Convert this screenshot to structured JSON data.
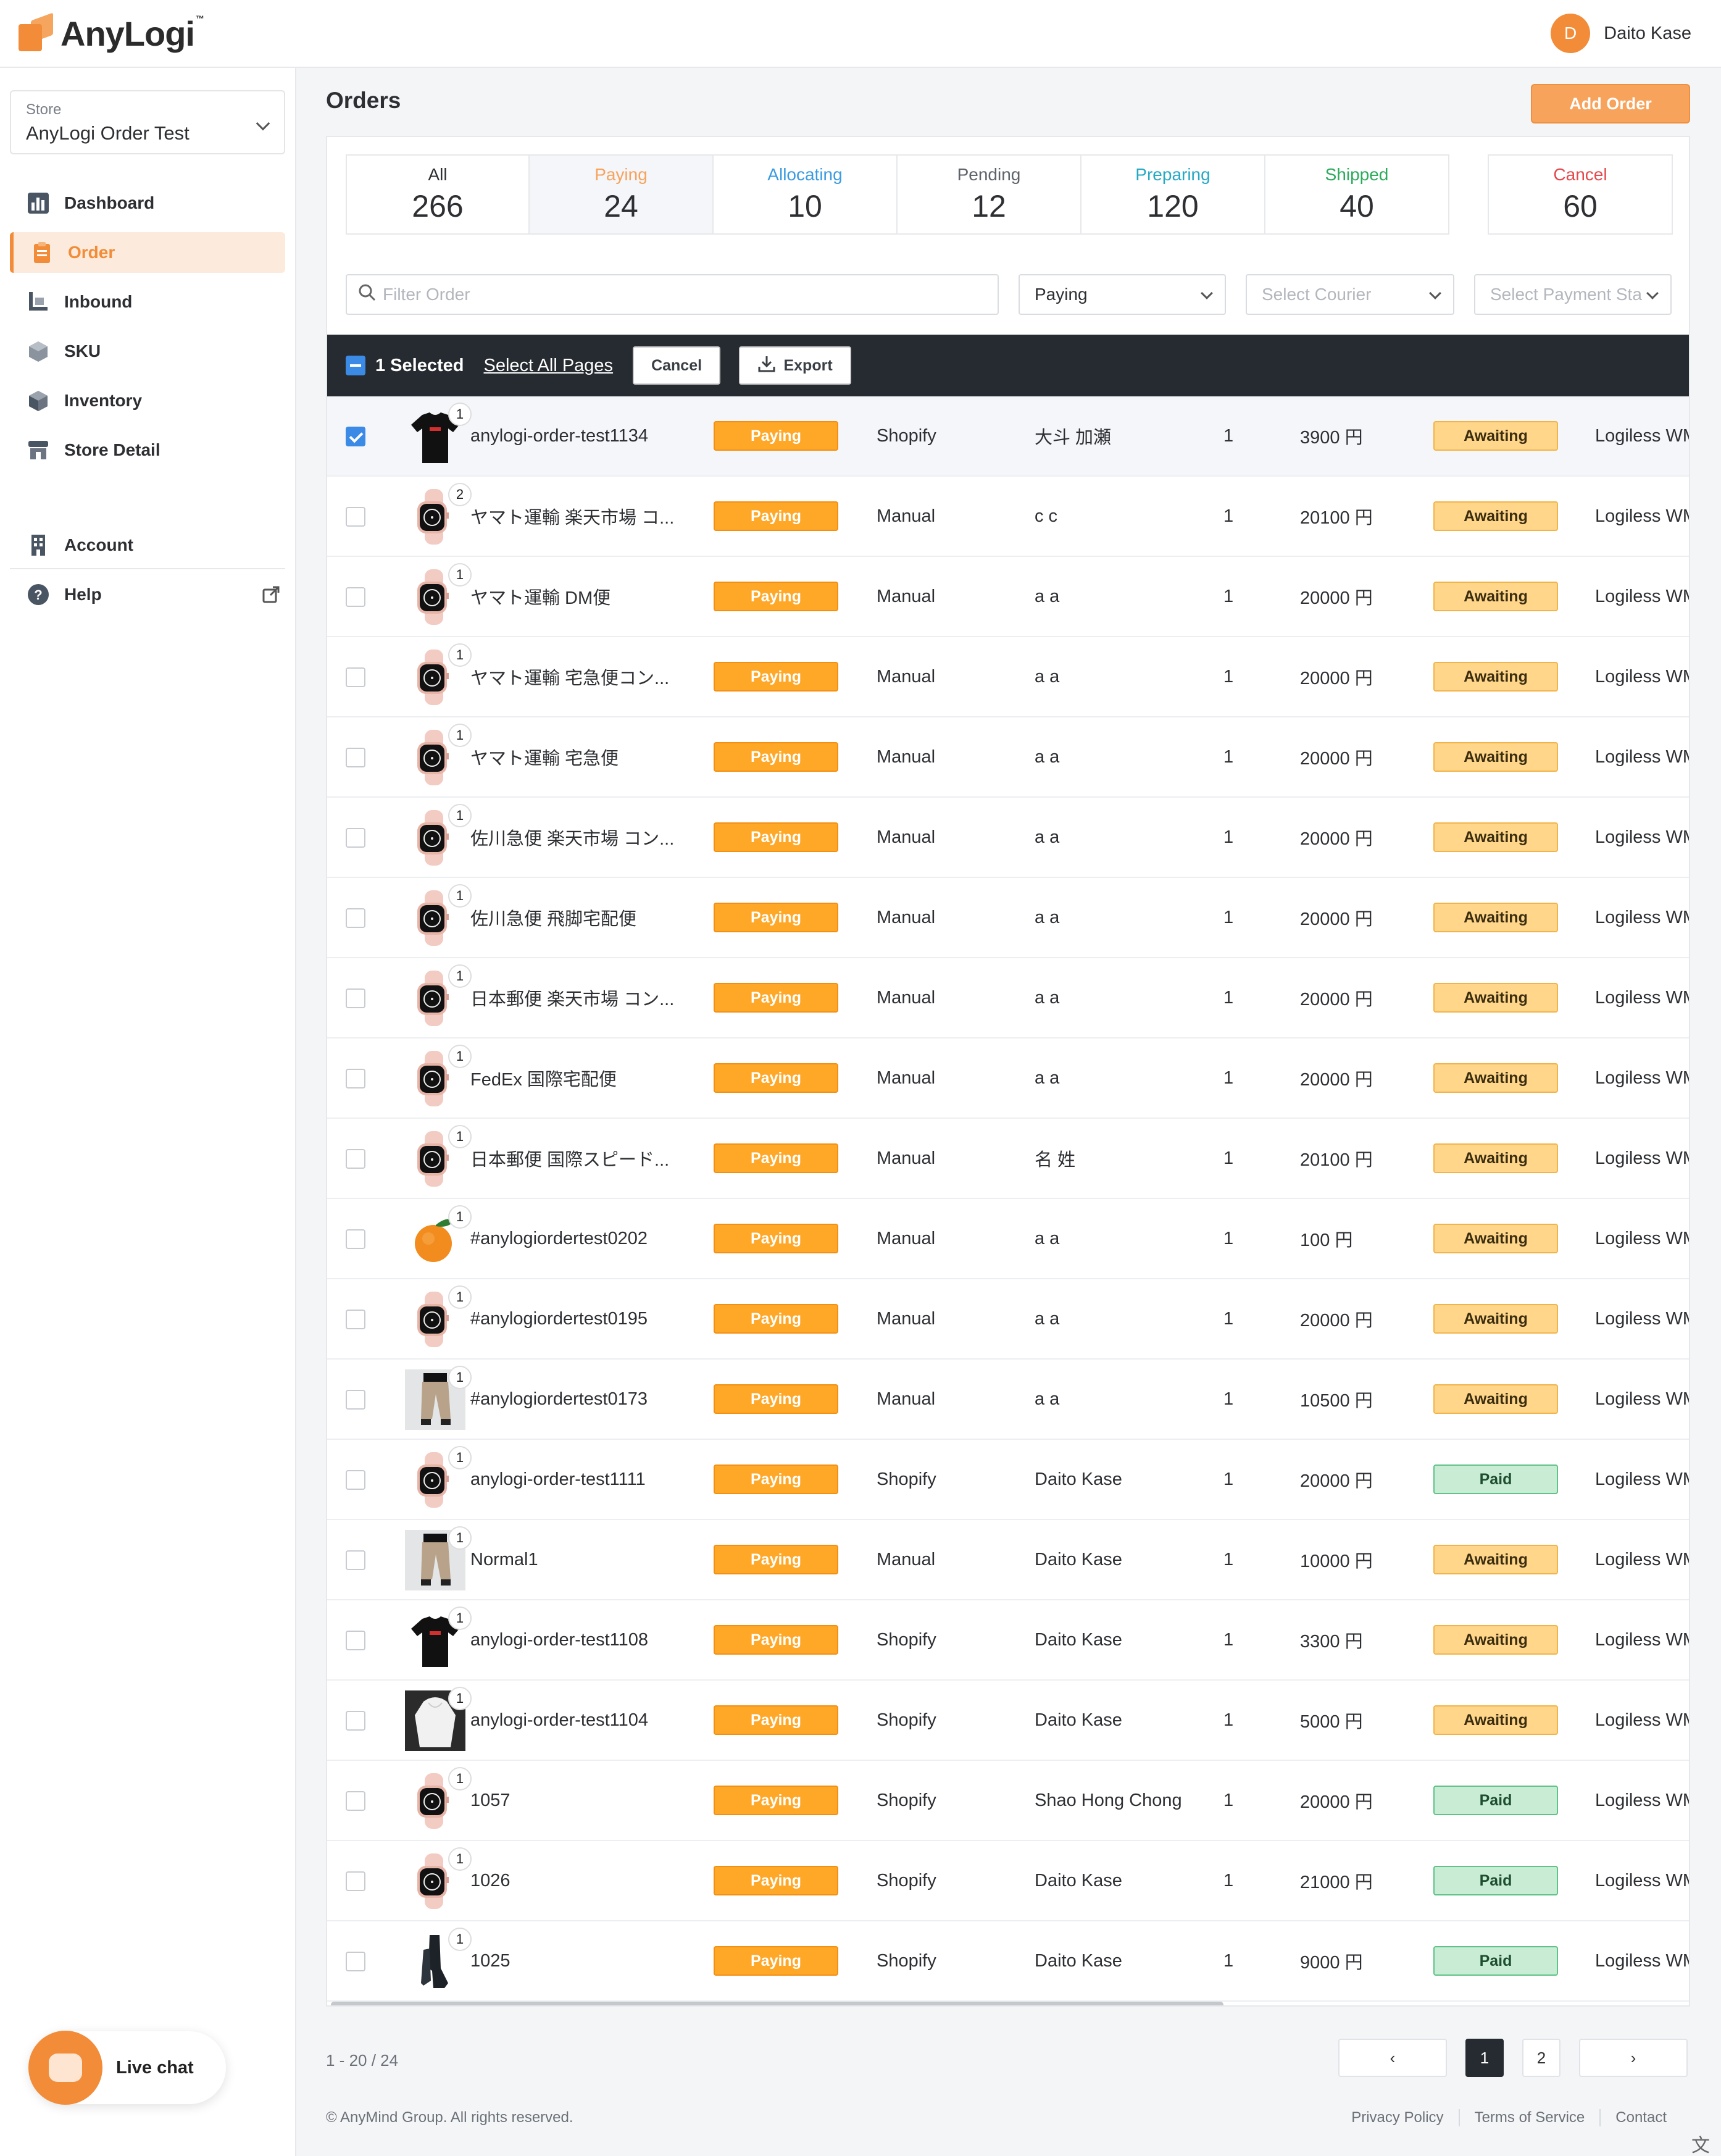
{
  "header": {
    "logo_text": "AnyLogi",
    "logo_tm": "™",
    "user_initial": "D",
    "user_name": "Daito Kase"
  },
  "sidebar": {
    "store_label": "Store",
    "store_value": "AnyLogi Order Test",
    "items": [
      {
        "label": "Dashboard",
        "icon": "chart-icon"
      },
      {
        "label": "Order",
        "icon": "clipboard-icon",
        "active": true
      },
      {
        "label": "Inbound",
        "icon": "inbound-icon"
      },
      {
        "label": "SKU",
        "icon": "box-icon"
      },
      {
        "label": "Inventory",
        "icon": "cube-icon"
      },
      {
        "label": "Store Detail",
        "icon": "store-icon"
      },
      {
        "label": "Account",
        "icon": "building-icon"
      },
      {
        "label": "Help",
        "icon": "help-icon"
      }
    ]
  },
  "main": {
    "title": "Orders",
    "add_button": "Add Order"
  },
  "tabs": [
    {
      "label": "All",
      "count": "266",
      "color": "#2d2f33"
    },
    {
      "label": "Paying",
      "count": "24",
      "color": "#f7a35c"
    },
    {
      "label": "Allocating",
      "count": "10",
      "color": "#3a9be0"
    },
    {
      "label": "Pending",
      "count": "12",
      "color": "#5f646b"
    },
    {
      "label": "Preparing",
      "count": "120",
      "color": "#26a9c4"
    },
    {
      "label": "Shipped",
      "count": "40",
      "color": "#2bab5b"
    },
    {
      "label": "Cancel",
      "count": "60",
      "color": "#e5484d"
    }
  ],
  "filters": {
    "search_placeholder": "Filter Order",
    "status_value": "Paying",
    "courier_placeholder": "Select Courier",
    "payment_placeholder": "Select Payment Sta"
  },
  "bulk": {
    "selected": "1 Selected",
    "select_all": "Select All Pages",
    "cancel": "Cancel",
    "export": "Export"
  },
  "rows": [
    {
      "checked": true,
      "img": "tshirt",
      "qty": "1",
      "id": "anylogi-order-test1134",
      "status": "Paying",
      "source": "Shopify",
      "customer": "大斗 加瀬",
      "count": "1",
      "amount": "3900 円",
      "payment": "Awaiting",
      "warehouse": "Logiless WM"
    },
    {
      "checked": false,
      "img": "watch",
      "qty": "2",
      "id": "ヤマト運輸 楽天市場 コ...",
      "status": "Paying",
      "source": "Manual",
      "customer": "c c",
      "count": "1",
      "amount": "20100 円",
      "payment": "Awaiting",
      "warehouse": "Logiless WM"
    },
    {
      "checked": false,
      "img": "watch",
      "qty": "1",
      "id": "ヤマト運輸 DM便",
      "status": "Paying",
      "source": "Manual",
      "customer": "a a",
      "count": "1",
      "amount": "20000 円",
      "payment": "Awaiting",
      "warehouse": "Logiless WM"
    },
    {
      "checked": false,
      "img": "watch",
      "qty": "1",
      "id": "ヤマト運輸 宅急便コン...",
      "status": "Paying",
      "source": "Manual",
      "customer": "a a",
      "count": "1",
      "amount": "20000 円",
      "payment": "Awaiting",
      "warehouse": "Logiless WM"
    },
    {
      "checked": false,
      "img": "watch",
      "qty": "1",
      "id": "ヤマト運輸 宅急便",
      "status": "Paying",
      "source": "Manual",
      "customer": "a a",
      "count": "1",
      "amount": "20000 円",
      "payment": "Awaiting",
      "warehouse": "Logiless WM"
    },
    {
      "checked": false,
      "img": "watch",
      "qty": "1",
      "id": "佐川急便 楽天市場 コン...",
      "status": "Paying",
      "source": "Manual",
      "customer": "a a",
      "count": "1",
      "amount": "20000 円",
      "payment": "Awaiting",
      "warehouse": "Logiless WM"
    },
    {
      "checked": false,
      "img": "watch",
      "qty": "1",
      "id": "佐川急便 飛脚宅配便",
      "status": "Paying",
      "source": "Manual",
      "customer": "a a",
      "count": "1",
      "amount": "20000 円",
      "payment": "Awaiting",
      "warehouse": "Logiless WM"
    },
    {
      "checked": false,
      "img": "watch",
      "qty": "1",
      "id": "日本郵便 楽天市場 コン...",
      "status": "Paying",
      "source": "Manual",
      "customer": "a a",
      "count": "1",
      "amount": "20000 円",
      "payment": "Awaiting",
      "warehouse": "Logiless WM"
    },
    {
      "checked": false,
      "img": "watch",
      "qty": "1",
      "id": "FedEx 国際宅配便",
      "status": "Paying",
      "source": "Manual",
      "customer": "a a",
      "count": "1",
      "amount": "20000 円",
      "payment": "Awaiting",
      "warehouse": "Logiless WM"
    },
    {
      "checked": false,
      "img": "watch",
      "qty": "1",
      "id": "日本郵便 国際スピード...",
      "status": "Paying",
      "source": "Manual",
      "customer": "名 姓",
      "count": "1",
      "amount": "20100 円",
      "payment": "Awaiting",
      "warehouse": "Logiless WM"
    },
    {
      "checked": false,
      "img": "orange",
      "qty": "1",
      "id": "#anylogiordertest0202",
      "status": "Paying",
      "source": "Manual",
      "customer": "a a",
      "count": "1",
      "amount": "100 円",
      "payment": "Awaiting",
      "warehouse": "Logiless WM"
    },
    {
      "checked": false,
      "img": "watch",
      "qty": "1",
      "id": "#anylogiordertest0195",
      "status": "Paying",
      "source": "Manual",
      "customer": "a a",
      "count": "1",
      "amount": "20000 円",
      "payment": "Awaiting",
      "warehouse": "Logiless WM"
    },
    {
      "checked": false,
      "img": "pants",
      "qty": "1",
      "id": "#anylogiordertest0173",
      "status": "Paying",
      "source": "Manual",
      "customer": "a a",
      "count": "1",
      "amount": "10500 円",
      "payment": "Awaiting",
      "warehouse": "Logiless WM"
    },
    {
      "checked": false,
      "img": "watch",
      "qty": "1",
      "id": "anylogi-order-test1111",
      "status": "Paying",
      "source": "Shopify",
      "customer": "Daito Kase",
      "count": "1",
      "amount": "20000 円",
      "payment": "Paid",
      "warehouse": "Logiless WM"
    },
    {
      "checked": false,
      "img": "pants",
      "qty": "1",
      "id": "Normal1",
      "status": "Paying",
      "source": "Manual",
      "customer": "Daito Kase",
      "count": "1",
      "amount": "10000 円",
      "payment": "Awaiting",
      "warehouse": "Logiless WM"
    },
    {
      "checked": false,
      "img": "tshirt",
      "qty": "1",
      "id": "anylogi-order-test1108",
      "status": "Paying",
      "source": "Shopify",
      "customer": "Daito Kase",
      "count": "1",
      "amount": "3300 円",
      "payment": "Awaiting",
      "warehouse": "Logiless WM"
    },
    {
      "checked": false,
      "img": "hoodie",
      "qty": "1",
      "id": "anylogi-order-test1104",
      "status": "Paying",
      "source": "Shopify",
      "customer": "Daito Kase",
      "count": "1",
      "amount": "5000 円",
      "payment": "Awaiting",
      "warehouse": "Logiless WM"
    },
    {
      "checked": false,
      "img": "watch",
      "qty": "1",
      "id": "1057",
      "status": "Paying",
      "source": "Shopify",
      "customer": "Shao Hong Chong",
      "count": "1",
      "amount": "20000 円",
      "payment": "Paid",
      "warehouse": "Logiless WM"
    },
    {
      "checked": false,
      "img": "watch",
      "qty": "1",
      "id": "1026",
      "status": "Paying",
      "source": "Shopify",
      "customer": "Daito Kase",
      "count": "1",
      "amount": "21000 円",
      "payment": "Paid",
      "warehouse": "Logiless WM"
    },
    {
      "checked": false,
      "img": "boots",
      "qty": "1",
      "id": "1025",
      "status": "Paying",
      "source": "Shopify",
      "customer": "Daito Kase",
      "count": "1",
      "amount": "9000 円",
      "payment": "Paid",
      "warehouse": "Logiless WM"
    }
  ],
  "pagination": {
    "range": "1 - 20 / 24",
    "prev": "‹",
    "pages": [
      "1",
      "2"
    ],
    "current": "1",
    "next": "›"
  },
  "footer": {
    "copyright": "© AnyMind Group. All rights reserved.",
    "links": [
      "Privacy Policy",
      "Terms of Service",
      "Contact"
    ]
  },
  "livechat": {
    "label": "Live chat"
  },
  "translate_icon": "文A"
}
